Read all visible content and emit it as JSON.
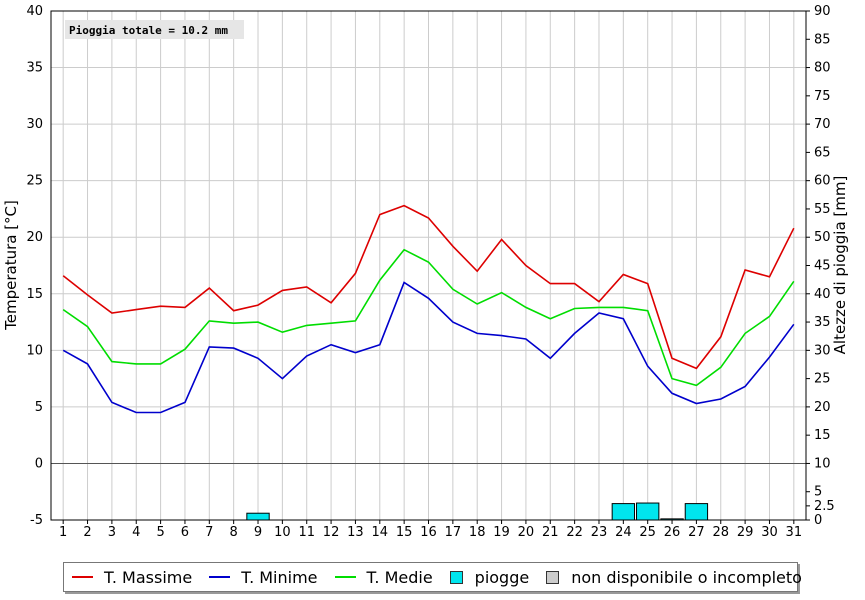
{
  "chart_data": {
    "type": "line",
    "annotation": "Pioggia totale = 10.2 mm",
    "ylabel": "Temperatura [°C]",
    "y2label": "Altezze di pioggia [mm]",
    "ylim": [
      -5,
      40
    ],
    "y2lim": [
      0,
      90
    ],
    "y2_ticks": [
      0,
      2.5,
      5,
      10,
      15,
      20,
      25,
      30,
      35,
      40,
      45,
      50,
      55,
      60,
      65,
      70,
      75,
      80,
      85,
      90
    ],
    "y2_tick_labels": [
      "0",
      "2.5",
      "5",
      "10",
      "15",
      "20",
      "25",
      "30",
      "35",
      "40",
      "45",
      "50",
      "55",
      "60",
      "65",
      "70",
      "75",
      "80",
      "85",
      "90"
    ],
    "x": [
      1,
      2,
      3,
      4,
      5,
      6,
      7,
      8,
      9,
      10,
      11,
      12,
      13,
      14,
      15,
      16,
      17,
      18,
      19,
      20,
      21,
      22,
      23,
      24,
      25,
      26,
      27,
      28,
      29,
      30,
      31
    ],
    "grid": true,
    "series": [
      {
        "name": "T. Massime",
        "color": "#dd0000",
        "type": "line",
        "values": [
          16.6,
          14.9,
          13.3,
          13.6,
          13.9,
          13.8,
          15.5,
          13.5,
          14.0,
          15.3,
          15.6,
          14.2,
          16.8,
          22.0,
          22.8,
          21.7,
          19.2,
          17.0,
          19.8,
          17.5,
          15.9,
          15.9,
          14.3,
          16.7,
          15.9,
          9.3,
          8.4,
          11.2,
          17.1,
          16.5,
          20.8
        ]
      },
      {
        "name": "T. Minime",
        "color": "#0000cc",
        "type": "line",
        "values": [
          10.0,
          8.8,
          5.4,
          4.5,
          4.5,
          5.4,
          10.3,
          10.2,
          9.3,
          7.5,
          9.5,
          10.5,
          9.8,
          10.5,
          16.0,
          14.6,
          12.5,
          11.5,
          11.3,
          11.0,
          9.3,
          11.5,
          13.3,
          12.8,
          8.6,
          6.2,
          5.3,
          5.7,
          6.8,
          9.4,
          12.3
        ]
      },
      {
        "name": "T. Medie",
        "color": "#00dd00",
        "type": "line",
        "values": [
          13.6,
          12.1,
          9.0,
          8.8,
          8.8,
          10.1,
          12.6,
          12.4,
          12.5,
          11.6,
          12.2,
          12.4,
          12.6,
          16.2,
          18.9,
          17.8,
          15.4,
          14.1,
          15.1,
          13.8,
          12.8,
          13.7,
          13.8,
          13.8,
          13.5,
          7.5,
          6.9,
          8.5,
          11.5,
          13.0,
          16.1
        ]
      },
      {
        "name": "piogge",
        "color": "#00e5ee",
        "type": "bar",
        "axis": "y2",
        "values": [
          0,
          0,
          0,
          0,
          0,
          0,
          0,
          0,
          1.2,
          0,
          0,
          0,
          0,
          0,
          0,
          0,
          0,
          0,
          0,
          0,
          0,
          0,
          0,
          2.9,
          3.0,
          0.2,
          2.9,
          0,
          0,
          0,
          0
        ]
      }
    ],
    "legend": [
      {
        "label": "T. Massime",
        "kind": "line",
        "color": "#dd0000"
      },
      {
        "label": "T. Minime",
        "kind": "line",
        "color": "#0000cc"
      },
      {
        "label": "T. Medie",
        "kind": "line",
        "color": "#00dd00"
      },
      {
        "label": "piogge",
        "kind": "box",
        "color": "#00e5ee"
      },
      {
        "label": "non disponibile o incompleto",
        "kind": "box",
        "color": "#cccccc"
      }
    ],
    "legend_position": "bottom"
  }
}
